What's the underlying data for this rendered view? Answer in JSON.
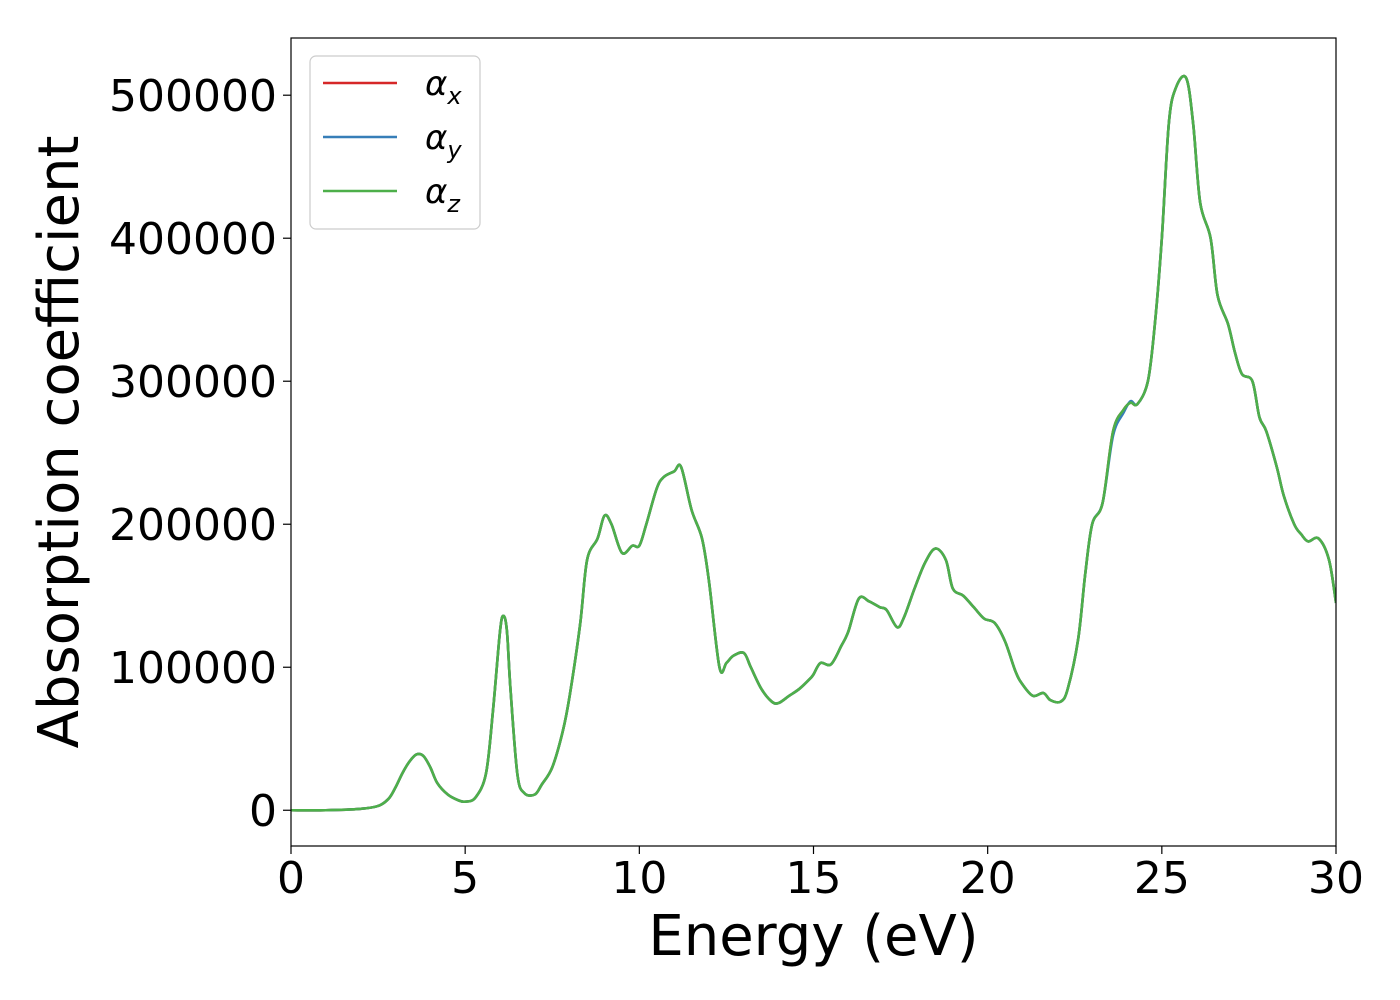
{
  "chart_data": {
    "type": "line",
    "title": "",
    "xlabel": "Energy (eV)",
    "ylabel": "Absorption coefficient",
    "xlim": [
      0,
      30
    ],
    "ylim": [
      -25000,
      540000
    ],
    "grid": false,
    "legend_position": "top-left",
    "x_ticks": [
      0,
      5,
      10,
      15,
      20,
      25,
      30
    ],
    "x_tick_labels": [
      "0",
      "5",
      "10",
      "15",
      "20",
      "25",
      "30"
    ],
    "y_ticks": [
      0,
      100000,
      200000,
      300000,
      400000,
      500000
    ],
    "y_tick_labels": [
      "0",
      "100000",
      "200000",
      "300000",
      "400000",
      "500000"
    ],
    "legend": [
      {
        "symbol": "α",
        "subscript": "x",
        "color": "#d62728"
      },
      {
        "symbol": "α",
        "subscript": "y",
        "color": "#377eb8"
      },
      {
        "symbol": "α",
        "subscript": "z",
        "color": "#4daf4a"
      }
    ],
    "x": [
      0,
      1,
      2,
      2.5,
      2.8,
      3.0,
      3.2,
      3.4,
      3.6,
      3.8,
      4.0,
      4.2,
      4.5,
      4.8,
      5.0,
      5.3,
      5.6,
      5.8,
      6.0,
      6.1,
      6.2,
      6.3,
      6.5,
      6.7,
      7.0,
      7.2,
      7.5,
      7.8,
      8.0,
      8.3,
      8.5,
      8.8,
      9.0,
      9.2,
      9.5,
      9.8,
      10.0,
      10.2,
      10.5,
      10.7,
      11.0,
      11.2,
      11.5,
      11.8,
      12.0,
      12.3,
      12.5,
      12.7,
      13.0,
      13.2,
      13.5,
      13.8,
      14.0,
      14.3,
      14.6,
      14.9,
      15.0,
      15.2,
      15.5,
      15.8,
      16.0,
      16.3,
      16.6,
      16.9,
      17.1,
      17.4,
      17.6,
      17.9,
      18.2,
      18.5,
      18.8,
      19.0,
      19.3,
      19.6,
      19.9,
      20.2,
      20.5,
      20.8,
      21.0,
      21.3,
      21.6,
      21.8,
      22.1,
      22.3,
      22.6,
      22.8,
      23.0,
      23.3,
      23.6,
      23.9,
      24.1,
      24.3,
      24.6,
      24.8,
      25.0,
      25.2,
      25.4,
      25.7,
      25.9,
      26.1,
      26.4,
      26.6,
      26.9,
      27.1,
      27.3,
      27.6,
      27.8,
      28.0,
      28.3,
      28.5,
      28.8,
      29.0,
      29.2,
      29.5,
      29.8,
      30.0
    ],
    "series": [
      {
        "color": "#d62728",
        "values": [
          0,
          0,
          1000,
          3000,
          8000,
          16000,
          26000,
          34000,
          39000,
          38000,
          30000,
          19000,
          11000,
          7000,
          6000,
          9000,
          26000,
          70000,
          125000,
          136000,
          125000,
          85000,
          25000,
          12000,
          11000,
          18000,
          30000,
          55000,
          80000,
          130000,
          175000,
          190000,
          206000,
          200000,
          180000,
          185000,
          185000,
          200000,
          225000,
          233000,
          237000,
          240000,
          210000,
          190000,
          160000,
          100000,
          103000,
          108000,
          110000,
          100000,
          85000,
          76000,
          75000,
          80000,
          85000,
          92000,
          95000,
          103000,
          102000,
          115000,
          125000,
          148000,
          146000,
          142000,
          140000,
          128000,
          135000,
          155000,
          173000,
          183000,
          175000,
          155000,
          150000,
          142000,
          134000,
          131000,
          118000,
          97000,
          88000,
          80000,
          82000,
          77000,
          76000,
          85000,
          120000,
          165000,
          200000,
          215000,
          265000,
          280000,
          285000,
          284000,
          300000,
          340000,
          400000,
          480000,
          505000,
          512000,
          480000,
          425000,
          400000,
          360000,
          340000,
          320000,
          305000,
          300000,
          275000,
          265000,
          240000,
          220000,
          200000,
          193000,
          188000,
          190000,
          175000,
          145000
        ]
      },
      {
        "color": "#377eb8",
        "values": [
          0,
          0,
          1000,
          3000,
          8000,
          16000,
          26000,
          34000,
          39000,
          38000,
          30000,
          19000,
          11000,
          7000,
          6000,
          9000,
          26000,
          70000,
          125000,
          136000,
          125000,
          85000,
          25000,
          12000,
          11000,
          18000,
          30000,
          55000,
          80000,
          130000,
          175000,
          190000,
          206000,
          200000,
          180000,
          185000,
          185000,
          200000,
          225000,
          233000,
          237000,
          240000,
          210000,
          190000,
          160000,
          100000,
          103000,
          108000,
          110000,
          100000,
          85000,
          76000,
          75000,
          80000,
          85000,
          92000,
          95000,
          103000,
          102000,
          115000,
          125000,
          148000,
          146000,
          142000,
          140000,
          128000,
          135000,
          155000,
          173000,
          183000,
          175000,
          155000,
          150000,
          142000,
          134000,
          131000,
          118000,
          97000,
          88000,
          80000,
          82000,
          77000,
          76000,
          85000,
          120000,
          165000,
          200000,
          215000,
          262000,
          278000,
          286000,
          284000,
          300000,
          340000,
          400000,
          480000,
          505000,
          512000,
          480000,
          425000,
          400000,
          360000,
          340000,
          320000,
          305000,
          300000,
          275000,
          265000,
          240000,
          220000,
          200000,
          193000,
          188000,
          190000,
          175000,
          145000
        ]
      },
      {
        "color": "#4daf4a",
        "values": [
          0,
          0,
          1000,
          3000,
          8000,
          16000,
          26000,
          34000,
          39000,
          38000,
          30000,
          19000,
          11000,
          7000,
          6000,
          9000,
          26000,
          70000,
          125000,
          136000,
          125000,
          85000,
          25000,
          12000,
          11000,
          18000,
          30000,
          55000,
          80000,
          130000,
          175000,
          190000,
          206000,
          200000,
          180000,
          185000,
          185000,
          200000,
          225000,
          233000,
          237000,
          240000,
          210000,
          190000,
          160000,
          100000,
          103000,
          108000,
          110000,
          100000,
          85000,
          76000,
          75000,
          80000,
          85000,
          92000,
          95000,
          103000,
          102000,
          115000,
          125000,
          148000,
          146000,
          142000,
          140000,
          128000,
          135000,
          155000,
          173000,
          183000,
          175000,
          155000,
          150000,
          142000,
          134000,
          131000,
          118000,
          97000,
          88000,
          80000,
          82000,
          77000,
          76000,
          85000,
          120000,
          165000,
          200000,
          215000,
          265000,
          280000,
          285000,
          284000,
          300000,
          340000,
          400000,
          480000,
          505000,
          512000,
          480000,
          425000,
          400000,
          360000,
          340000,
          320000,
          305000,
          300000,
          275000,
          265000,
          240000,
          220000,
          200000,
          193000,
          188000,
          190000,
          175000,
          145000
        ]
      }
    ]
  }
}
